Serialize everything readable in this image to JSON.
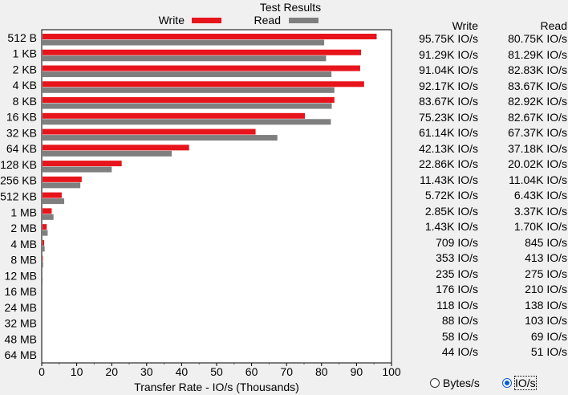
{
  "colors": {
    "write": "#e8141c",
    "read": "#7f7f7f",
    "plot_bg": "#ffffff",
    "page_bg": "#f0f0f0"
  },
  "chart_data": {
    "type": "bar",
    "orientation": "horizontal",
    "title": "Test Results",
    "xlabel": "Transfer Rate - IO/s (Thousands)",
    "xlim": [
      0,
      100
    ],
    "xticks": [
      0,
      10,
      20,
      30,
      40,
      50,
      60,
      70,
      80,
      90,
      100
    ],
    "legend_position": "top",
    "categories": [
      "512 B",
      "1 KB",
      "2 KB",
      "4 KB",
      "8 KB",
      "16 KB",
      "32 KB",
      "64 KB",
      "128 KB",
      "256 KB",
      "512 KB",
      "1 MB",
      "2 MB",
      "4 MB",
      "8 MB",
      "12 MB",
      "16 MB",
      "24 MB",
      "32 MB",
      "48 MB",
      "64 MB"
    ],
    "series": [
      {
        "name": "Write",
        "values": [
          95.75,
          91.29,
          91.04,
          92.17,
          83.67,
          75.23,
          61.14,
          42.13,
          22.86,
          11.43,
          5.72,
          2.85,
          1.43,
          0.709,
          0.353,
          0.235,
          0.176,
          0.118,
          0.088,
          0.058,
          0.044
        ]
      },
      {
        "name": "Read",
        "values": [
          80.75,
          81.29,
          82.83,
          83.67,
          82.92,
          82.67,
          67.37,
          37.18,
          20.02,
          11.04,
          6.43,
          3.37,
          1.7,
          0.845,
          0.413,
          0.275,
          0.21,
          0.138,
          0.103,
          0.069,
          0.051
        ]
      }
    ]
  },
  "table": {
    "write_header": "Write",
    "read_header": "Read",
    "rows": [
      {
        "write": "95.75K IO/s",
        "read": "80.75K IO/s"
      },
      {
        "write": "91.29K IO/s",
        "read": "81.29K IO/s"
      },
      {
        "write": "91.04K IO/s",
        "read": "82.83K IO/s"
      },
      {
        "write": "92.17K IO/s",
        "read": "83.67K IO/s"
      },
      {
        "write": "83.67K IO/s",
        "read": "82.92K IO/s"
      },
      {
        "write": "75.23K IO/s",
        "read": "82.67K IO/s"
      },
      {
        "write": "61.14K IO/s",
        "read": "67.37K IO/s"
      },
      {
        "write": "42.13K IO/s",
        "read": "37.18K IO/s"
      },
      {
        "write": "22.86K IO/s",
        "read": "20.02K IO/s"
      },
      {
        "write": "11.43K IO/s",
        "read": "11.04K IO/s"
      },
      {
        "write": "5.72K IO/s",
        "read": "6.43K IO/s"
      },
      {
        "write": "2.85K IO/s",
        "read": "3.37K IO/s"
      },
      {
        "write": "1.43K IO/s",
        "read": "1.70K IO/s"
      },
      {
        "write": "709 IO/s",
        "read": "845 IO/s"
      },
      {
        "write": "353 IO/s",
        "read": "413 IO/s"
      },
      {
        "write": "235 IO/s",
        "read": "275 IO/s"
      },
      {
        "write": "176 IO/s",
        "read": "210 IO/s"
      },
      {
        "write": "118 IO/s",
        "read": "138 IO/s"
      },
      {
        "write": "88 IO/s",
        "read": "103 IO/s"
      },
      {
        "write": "58 IO/s",
        "read": "69 IO/s"
      },
      {
        "write": "44 IO/s",
        "read": "51 IO/s"
      }
    ]
  },
  "display_mode": {
    "options": [
      {
        "label": "Bytes/s",
        "selected": false
      },
      {
        "label": "IO/s",
        "selected": true
      }
    ]
  }
}
